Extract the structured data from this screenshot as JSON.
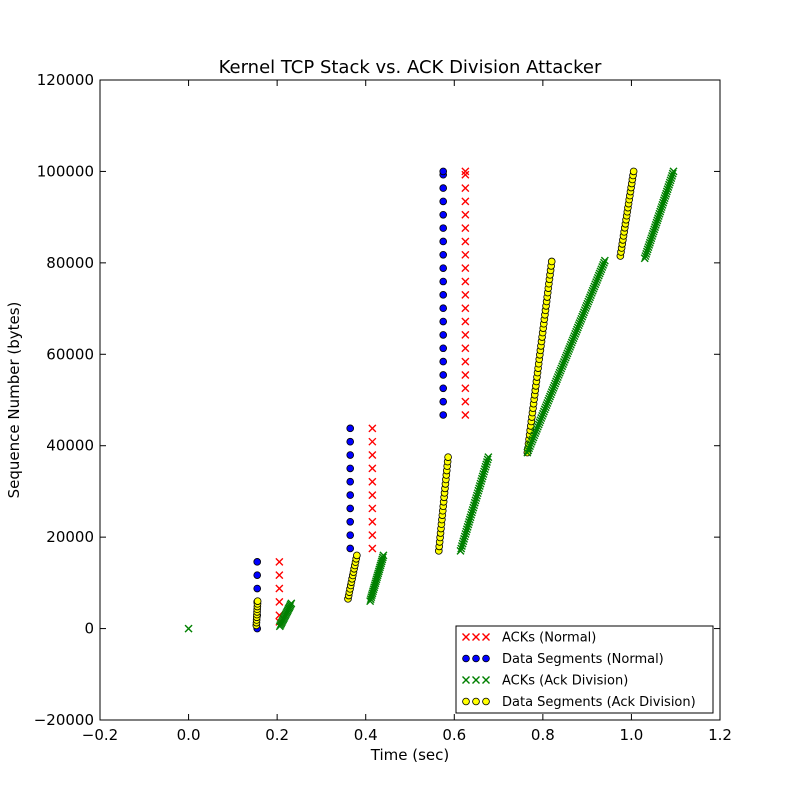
{
  "chart_data": {
    "type": "scatter",
    "title": "Kernel TCP Stack vs. ACK Division Attacker",
    "xlabel": "Time (sec)",
    "ylabel": "Sequence Number (bytes)",
    "xlim": [
      -0.2,
      1.2
    ],
    "ylim": [
      -20000,
      120000
    ],
    "xticks": [
      -0.2,
      0.0,
      0.2,
      0.4,
      0.6,
      0.8,
      1.0,
      1.2
    ],
    "xtick_labels": [
      "−0.2",
      "0.0",
      "0.2",
      "0.4",
      "0.6",
      "0.8",
      "1.0",
      "1.2"
    ],
    "yticks": [
      -20000,
      0,
      20000,
      40000,
      60000,
      80000,
      100000,
      120000
    ],
    "ytick_labels": [
      "−20000",
      "0",
      "20000",
      "40000",
      "60000",
      "80000",
      "100000",
      "120000"
    ],
    "grid": false,
    "legend_position": "lower-right",
    "series": [
      {
        "name": "ACKs (Normal)",
        "marker": "x",
        "color": "#ff0000",
        "points": [
          [
            0.205,
            1460
          ],
          [
            0.205,
            2920
          ],
          [
            0.205,
            5840
          ],
          [
            0.205,
            8760
          ],
          [
            0.205,
            11680
          ],
          [
            0.205,
            14600
          ],
          [
            0.415,
            17520
          ],
          [
            0.415,
            20440
          ],
          [
            0.415,
            23360
          ],
          [
            0.415,
            26280
          ],
          [
            0.415,
            29200
          ],
          [
            0.415,
            32120
          ],
          [
            0.415,
            35040
          ],
          [
            0.415,
            37960
          ],
          [
            0.415,
            40880
          ],
          [
            0.415,
            43800
          ],
          [
            0.625,
            46720
          ],
          [
            0.625,
            49640
          ],
          [
            0.625,
            52560
          ],
          [
            0.625,
            55480
          ],
          [
            0.625,
            58400
          ],
          [
            0.625,
            61320
          ],
          [
            0.625,
            64240
          ],
          [
            0.625,
            67160
          ],
          [
            0.625,
            70080
          ],
          [
            0.625,
            73000
          ],
          [
            0.625,
            75920
          ],
          [
            0.625,
            78840
          ],
          [
            0.625,
            81760
          ],
          [
            0.625,
            84680
          ],
          [
            0.625,
            87600
          ],
          [
            0.625,
            90520
          ],
          [
            0.625,
            93440
          ],
          [
            0.625,
            96360
          ],
          [
            0.625,
            99280
          ],
          [
            0.625,
            100000
          ]
        ]
      },
      {
        "name": "Data Segments (Normal)",
        "marker": "o",
        "color": "#0000ff",
        "points": [
          [
            0.155,
            0
          ],
          [
            0.155,
            2920
          ],
          [
            0.155,
            5840
          ],
          [
            0.155,
            8760
          ],
          [
            0.155,
            11680
          ],
          [
            0.155,
            14600
          ],
          [
            0.365,
            17520
          ],
          [
            0.365,
            20440
          ],
          [
            0.365,
            23360
          ],
          [
            0.365,
            26280
          ],
          [
            0.365,
            29200
          ],
          [
            0.365,
            32120
          ],
          [
            0.365,
            35040
          ],
          [
            0.365,
            37960
          ],
          [
            0.365,
            40880
          ],
          [
            0.365,
            43800
          ],
          [
            0.575,
            46720
          ],
          [
            0.575,
            49640
          ],
          [
            0.575,
            52560
          ],
          [
            0.575,
            55480
          ],
          [
            0.575,
            58400
          ],
          [
            0.575,
            61320
          ],
          [
            0.575,
            64240
          ],
          [
            0.575,
            67160
          ],
          [
            0.575,
            70080
          ],
          [
            0.575,
            73000
          ],
          [
            0.575,
            75920
          ],
          [
            0.575,
            78840
          ],
          [
            0.575,
            81760
          ],
          [
            0.575,
            84680
          ],
          [
            0.575,
            87600
          ],
          [
            0.575,
            90520
          ],
          [
            0.575,
            93440
          ],
          [
            0.575,
            96360
          ],
          [
            0.575,
            99280
          ],
          [
            0.575,
            100000
          ]
        ]
      },
      {
        "name": "ACKs (Ack Division)",
        "marker": "x",
        "color": "#008000",
        "isolated_points": [
          [
            0.0,
            0
          ]
        ],
        "segments": [
          {
            "x0": 0.206,
            "x1": 0.232,
            "y0": 500,
            "y1": 5500,
            "n": 18
          },
          {
            "x0": 0.41,
            "x1": 0.44,
            "y0": 6000,
            "y1": 16000,
            "n": 24
          },
          {
            "x0": 0.614,
            "x1": 0.677,
            "y0": 17000,
            "y1": 37500,
            "n": 40
          },
          {
            "x0": 0.765,
            "x1": 0.94,
            "y0": 38500,
            "y1": 80500,
            "n": 90
          },
          {
            "x0": 1.03,
            "x1": 1.095,
            "y0": 81000,
            "y1": 100000,
            "n": 40
          }
        ]
      },
      {
        "name": "Data Segments (Ack Division)",
        "marker": "o",
        "color": "#ffff00",
        "segments": [
          {
            "x0": 0.153,
            "x1": 0.156,
            "y0": 700,
            "y1": 6000,
            "n": 10
          },
          {
            "x0": 0.36,
            "x1": 0.38,
            "y0": 6500,
            "y1": 16000,
            "n": 14
          },
          {
            "x0": 0.565,
            "x1": 0.586,
            "y0": 17000,
            "y1": 37500,
            "n": 22
          },
          {
            "x0": 0.765,
            "x1": 0.82,
            "y0": 38500,
            "y1": 80300,
            "n": 44
          },
          {
            "x0": 0.975,
            "x1": 1.005,
            "y0": 81500,
            "y1": 100000,
            "n": 22
          }
        ]
      }
    ]
  }
}
